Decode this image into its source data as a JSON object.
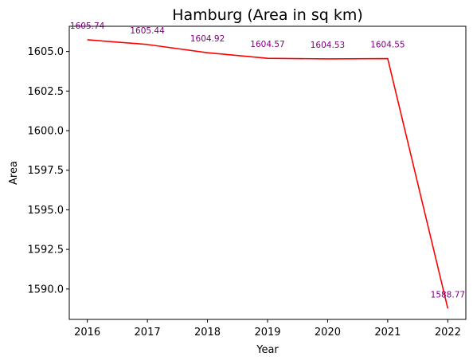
{
  "chart_data": {
    "type": "line",
    "title": "Hamburg (Area in sq km)",
    "xlabel": "Year",
    "ylabel": "Area",
    "x": [
      2016,
      2017,
      2018,
      2019,
      2020,
      2021,
      2022
    ],
    "x_tick_labels": [
      "2016",
      "2017",
      "2018",
      "2019",
      "2020",
      "2021",
      "2022"
    ],
    "y_ticks": [
      1590.0,
      1592.5,
      1595.0,
      1597.5,
      1600.0,
      1602.5,
      1605.0
    ],
    "y_tick_labels": [
      "1590.0",
      "1592.5",
      "1595.0",
      "1597.5",
      "1600.0",
      "1602.5",
      "1605.0"
    ],
    "ylim": [
      1588.08,
      1606.59
    ],
    "xlim": [
      2015.7,
      2022.3
    ],
    "grid": false,
    "series": [
      {
        "values": [
          1605.74,
          1605.44,
          1604.92,
          1604.57,
          1604.53,
          1604.55,
          1588.77
        ],
        "labels": [
          "1605.74",
          "1605.44",
          "1604.92",
          "1604.57",
          "1604.53",
          "1604.55",
          "1588.77"
        ]
      }
    ],
    "colors": {
      "line": "#ff0000",
      "labels": "#800080"
    }
  }
}
